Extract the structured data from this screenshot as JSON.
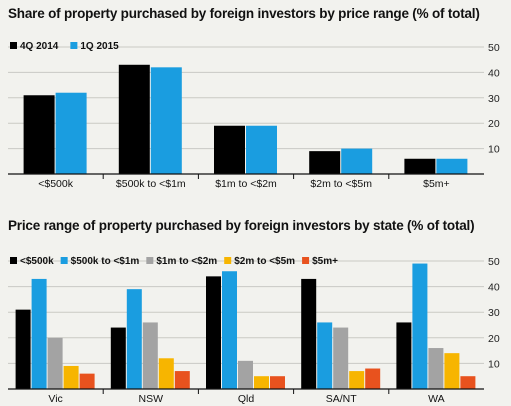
{
  "chart_data": [
    {
      "type": "bar",
      "title": "Share of property purchased by foreign investors by price range (% of total)",
      "categories": [
        "<$500k",
        "$500k to <$1m",
        "$1m to <$2m",
        "$2m to <$5m",
        "$5m+"
      ],
      "series": [
        {
          "name": "4Q 2014",
          "color": "#000000",
          "values": [
            31,
            43,
            19,
            9,
            6
          ]
        },
        {
          "name": "1Q 2015",
          "color": "#1a9de0",
          "values": [
            32,
            42,
            19,
            10,
            6
          ]
        }
      ],
      "ylim": [
        0,
        50
      ],
      "yticks": [
        10,
        20,
        30,
        40,
        50
      ],
      "ytick_labels": [
        "10",
        "20",
        "30",
        "40",
        "50"
      ],
      "grid": true,
      "legend": "top-left",
      "axis_side": "right"
    },
    {
      "type": "bar",
      "title": "Price range of property purchased by foreign investors by state (% of total)",
      "categories": [
        "Vic",
        "NSW",
        "Qld",
        "SA/NT",
        "WA"
      ],
      "series": [
        {
          "name": "<$500k",
          "color": "#000000",
          "values": [
            31,
            24,
            44,
            43,
            26
          ]
        },
        {
          "name": "$500k to <$1m",
          "color": "#1a9de0",
          "values": [
            43,
            39,
            46,
            26,
            49
          ]
        },
        {
          "name": "$1m to <$2m",
          "color": "#a3a3a3",
          "values": [
            20,
            26,
            11,
            24,
            16
          ]
        },
        {
          "name": "$2m to <$5m",
          "color": "#f7b500",
          "values": [
            9,
            12,
            5,
            7,
            14
          ]
        },
        {
          "name": "$5m+",
          "color": "#e8521e",
          "values": [
            6,
            7,
            5,
            8,
            5
          ]
        }
      ],
      "ylim": [
        0,
        50
      ],
      "yticks": [
        10,
        20,
        30,
        40,
        50
      ],
      "ytick_labels": [
        "10",
        "20",
        "30",
        "40",
        "50"
      ],
      "grid": true,
      "legend": "top-left",
      "axis_side": "right"
    }
  ]
}
